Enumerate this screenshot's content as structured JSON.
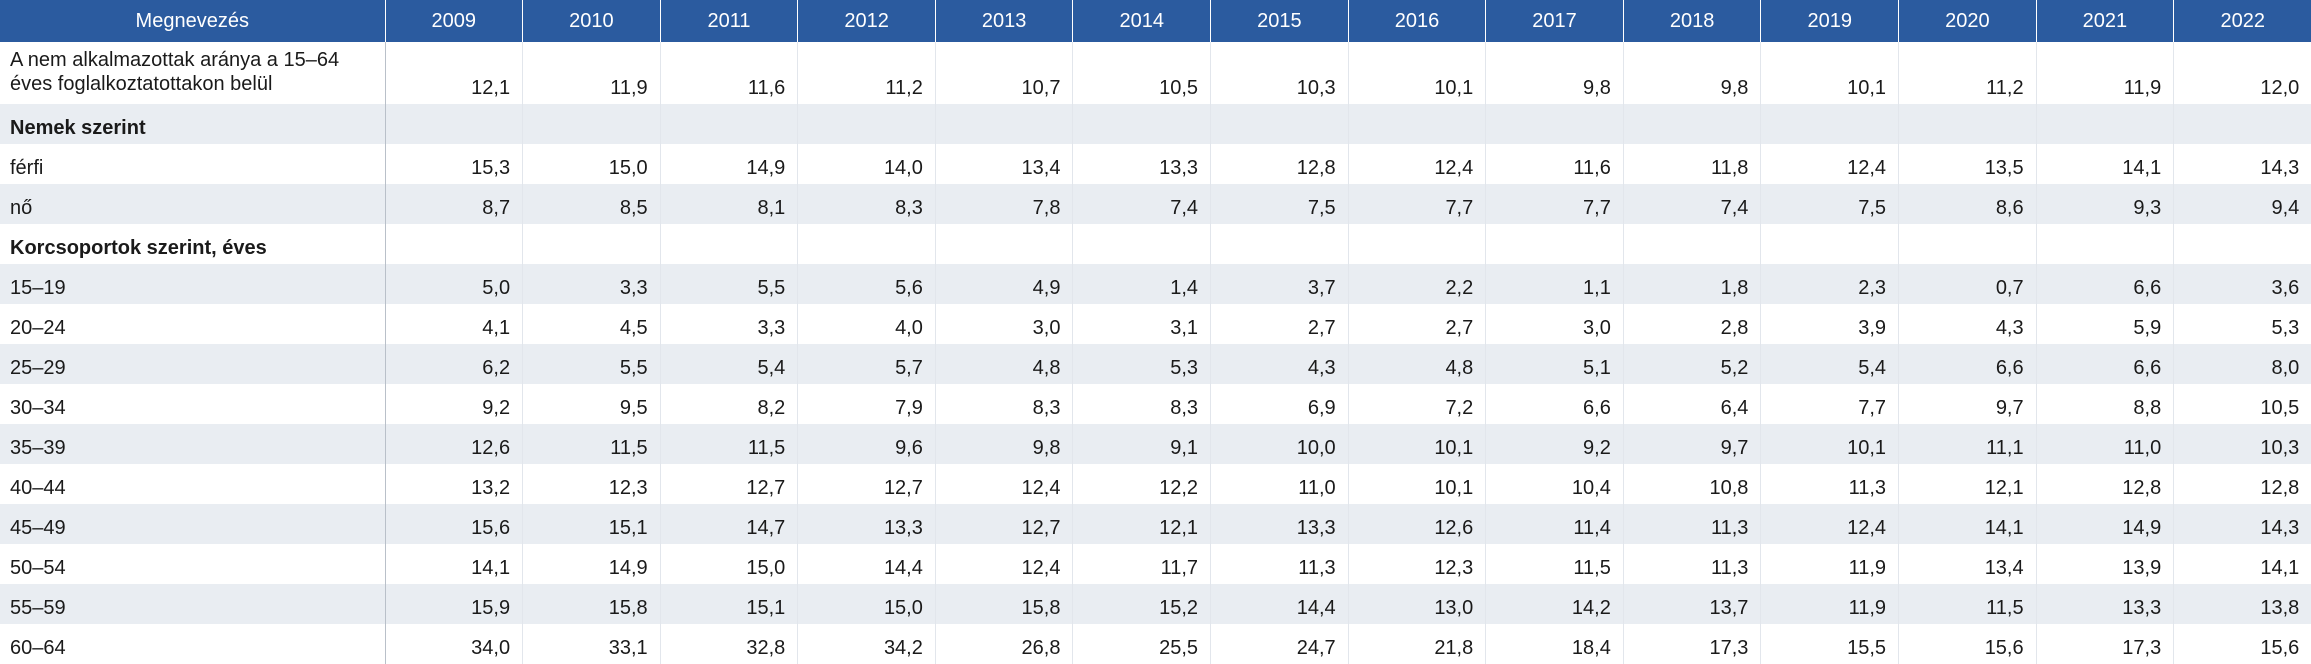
{
  "header": {
    "name_label": "Megnevezés",
    "years": [
      "2009",
      "2010",
      "2011",
      "2012",
      "2013",
      "2014",
      "2015",
      "2016",
      "2017",
      "2018",
      "2019",
      "2020",
      "2021",
      "2022"
    ]
  },
  "rows": [
    {
      "label": "A nem alkalmazottak aránya a 15–64 éves foglalkoztatottakon belül",
      "values": [
        "12,1",
        "11,9",
        "11,6",
        "11,2",
        "10,7",
        "10,5",
        "10,3",
        "10,1",
        "9,8",
        "9,8",
        "10,1",
        "11,2",
        "11,9",
        "12,0"
      ]
    },
    {
      "label": "Nemek szerint",
      "values": []
    },
    {
      "label": "férfi",
      "values": [
        "15,3",
        "15,0",
        "14,9",
        "14,0",
        "13,4",
        "13,3",
        "12,8",
        "12,4",
        "11,6",
        "11,8",
        "12,4",
        "13,5",
        "14,1",
        "14,3"
      ]
    },
    {
      "label": "nő",
      "values": [
        "8,7",
        "8,5",
        "8,1",
        "8,3",
        "7,8",
        "7,4",
        "7,5",
        "7,7",
        "7,7",
        "7,4",
        "7,5",
        "8,6",
        "9,3",
        "9,4"
      ]
    },
    {
      "label": "Korcsoportok szerint, éves",
      "values": []
    },
    {
      "label": "15–19",
      "values": [
        "5,0",
        "3,3",
        "5,5",
        "5,6",
        "4,9",
        "1,4",
        "3,7",
        "2,2",
        "1,1",
        "1,8",
        "2,3",
        "0,7",
        "6,6",
        "3,6"
      ]
    },
    {
      "label": "20–24",
      "values": [
        "4,1",
        "4,5",
        "3,3",
        "4,0",
        "3,0",
        "3,1",
        "2,7",
        "2,7",
        "3,0",
        "2,8",
        "3,9",
        "4,3",
        "5,9",
        "5,3"
      ]
    },
    {
      "label": "25–29",
      "values": [
        "6,2",
        "5,5",
        "5,4",
        "5,7",
        "4,8",
        "5,3",
        "4,3",
        "4,8",
        "5,1",
        "5,2",
        "5,4",
        "6,6",
        "6,6",
        "8,0"
      ]
    },
    {
      "label": "30–34",
      "values": [
        "9,2",
        "9,5",
        "8,2",
        "7,9",
        "8,3",
        "8,3",
        "6,9",
        "7,2",
        "6,6",
        "6,4",
        "7,7",
        "9,7",
        "8,8",
        "10,5"
      ]
    },
    {
      "label": "35–39",
      "values": [
        "12,6",
        "11,5",
        "11,5",
        "9,6",
        "9,8",
        "9,1",
        "10,0",
        "10,1",
        "9,2",
        "9,7",
        "10,1",
        "11,1",
        "11,0",
        "10,3"
      ]
    },
    {
      "label": "40–44",
      "values": [
        "13,2",
        "12,3",
        "12,7",
        "12,7",
        "12,4",
        "12,2",
        "11,0",
        "10,1",
        "10,4",
        "10,8",
        "11,3",
        "12,1",
        "12,8",
        "12,8"
      ]
    },
    {
      "label": "45–49",
      "values": [
        "15,6",
        "15,1",
        "14,7",
        "13,3",
        "12,7",
        "12,1",
        "13,3",
        "12,6",
        "11,4",
        "11,3",
        "12,4",
        "14,1",
        "14,9",
        "14,3"
      ]
    },
    {
      "label": "50–54",
      "values": [
        "14,1",
        "14,9",
        "15,0",
        "14,4",
        "12,4",
        "11,7",
        "11,3",
        "12,3",
        "11,5",
        "11,3",
        "11,9",
        "13,4",
        "13,9",
        "14,1"
      ]
    },
    {
      "label": "55–59",
      "values": [
        "15,9",
        "15,8",
        "15,1",
        "15,0",
        "15,8",
        "15,2",
        "14,4",
        "13,0",
        "14,2",
        "13,7",
        "11,9",
        "11,5",
        "13,3",
        "13,8"
      ]
    },
    {
      "label": "60–64",
      "values": [
        "34,0",
        "33,1",
        "32,8",
        "34,2",
        "26,8",
        "25,5",
        "24,7",
        "21,8",
        "18,4",
        "17,3",
        "15,5",
        "15,6",
        "17,3",
        "15,6"
      ]
    }
  ]
}
